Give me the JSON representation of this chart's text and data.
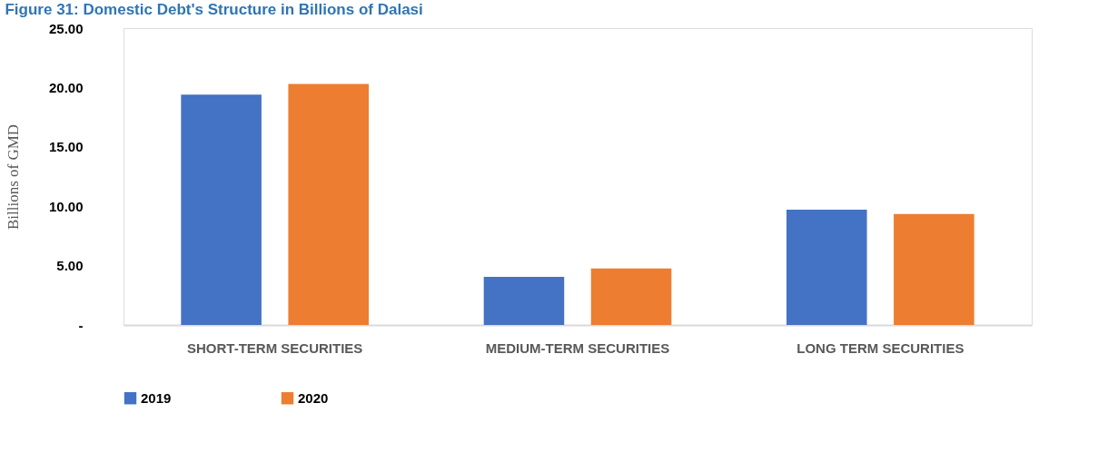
{
  "chart_data": {
    "type": "bar",
    "title": "Figure 31: Domestic Debt's Structure in Billions of Dalasi",
    "ylabel": "Billions of GMD",
    "categories": [
      "SHORT-TERM SECURITIES",
      "MEDIUM-TERM SECURITIES",
      "LONG TERM SECURITIES"
    ],
    "series": [
      {
        "name": "2019",
        "color": "#4472c4",
        "values": [
          19.4,
          4.05,
          9.7
        ]
      },
      {
        "name": "2020",
        "color": "#ed7d31",
        "values": [
          20.3,
          4.75,
          9.35
        ]
      }
    ],
    "ylim": [
      0,
      25
    ],
    "yticks": [
      {
        "value": 0,
        "label": "-"
      },
      {
        "value": 5,
        "label": "5.00"
      },
      {
        "value": 10,
        "label": "10.00"
      },
      {
        "value": 15,
        "label": "15.00"
      },
      {
        "value": 20,
        "label": "20.00"
      },
      {
        "value": 25,
        "label": "25.00"
      }
    ],
    "grid": false,
    "legend": "bottom"
  }
}
